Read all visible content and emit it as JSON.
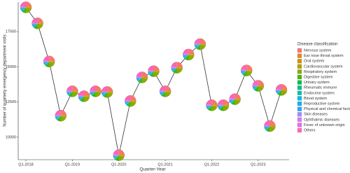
{
  "chart_data": {
    "type": "line-pie",
    "x_label": "Quarter-Year",
    "y_label": "Number of quarterly emergency department visits",
    "categories": [
      "Q1-2018",
      null,
      null,
      null,
      "Q1-2019",
      null,
      null,
      null,
      "Q1-2020",
      null,
      null,
      null,
      "Q1-2021",
      null,
      null,
      null,
      "Q1-2022",
      null,
      null,
      null,
      "Q1-2023",
      null,
      null
    ],
    "values": [
      19230,
      18090,
      15380,
      11530,
      13260,
      12910,
      13260,
      13210,
      8720,
      12570,
      14250,
      14690,
      13260,
      14940,
      15870,
      16610,
      12270,
      12270,
      12700,
      14740,
      13650,
      10790,
      13360
    ],
    "line_color": "#333333",
    "ylim": [
      8400,
      19600
    ],
    "yticks": [
      10000,
      12500,
      15000,
      17500
    ],
    "legend_title": "Disease classification",
    "groups": [
      {
        "name": "Nervous system",
        "color": "#F8766D",
        "share": 22
      },
      {
        "name": "Ear nose throat system",
        "color": "#E7851E",
        "share": 3
      },
      {
        "name": "Oral system",
        "color": "#D09400",
        "share": 2
      },
      {
        "name": "Cardiovascular system",
        "color": "#B2A100",
        "share": 4
      },
      {
        "name": "Respiratory system",
        "color": "#89AC00",
        "share": 18
      },
      {
        "name": "Digestive system",
        "color": "#45B500",
        "share": 10
      },
      {
        "name": "Urinary system",
        "color": "#00BC51",
        "share": 3
      },
      {
        "name": "Rheumatic immune",
        "color": "#00C087",
        "share": 1
      },
      {
        "name": "Endocrine system",
        "color": "#00C0B2",
        "share": 1
      },
      {
        "name": "Blood system",
        "color": "#00BCD6",
        "share": 1
      },
      {
        "name": "Reproductive system",
        "color": "#00B3F2",
        "share": 2
      },
      {
        "name": "Physical and chemical factors",
        "color": "#29A3FF",
        "share": 5
      },
      {
        "name": "Skin diseases",
        "color": "#9C8DFF",
        "share": 3
      },
      {
        "name": "Ophthalmic diseases",
        "color": "#D277FF",
        "share": 2
      },
      {
        "name": "Fever of unknown origin",
        "color": "#F166E8",
        "share": 1
      },
      {
        "name": "Others",
        "color": "#FF63B6",
        "share": 22
      }
    ]
  }
}
